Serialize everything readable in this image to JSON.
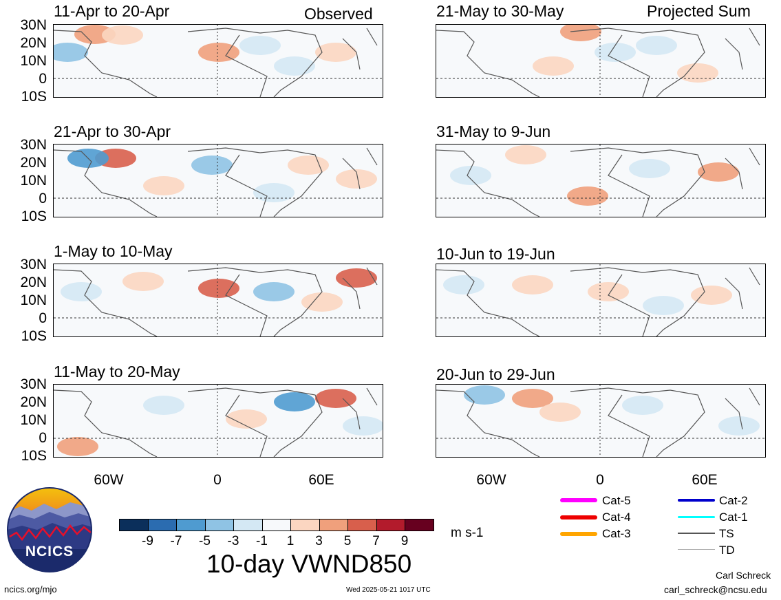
{
  "headers": {
    "left": "Observed",
    "right": "Projected Sum"
  },
  "panels_left": [
    {
      "title": "11-Apr to 20-Apr"
    },
    {
      "title": "21-Apr to 30-Apr"
    },
    {
      "title": "1-May to 10-May"
    },
    {
      "title": "11-May to 20-May"
    }
  ],
  "panels_right": [
    {
      "title": "21-May to 30-May"
    },
    {
      "title": "31-May to 9-Jun"
    },
    {
      "title": "10-Jun to 19-Jun"
    },
    {
      "title": "20-Jun to 29-Jun"
    }
  ],
  "lat_labels": [
    "30N",
    "20N",
    "10N",
    "0",
    "10S"
  ],
  "lon_labels": [
    "60W",
    "0",
    "60E"
  ],
  "colorbar": {
    "title": "10-day VWND850",
    "units": "m s-1",
    "tick_labels": [
      "-9",
      "-7",
      "-5",
      "-3",
      "-1",
      "1",
      "3",
      "5",
      "7",
      "9"
    ],
    "colors": [
      "#0b2f5b",
      "#2b6cb0",
      "#4f9bd0",
      "#8fc3e4",
      "#d4e8f4",
      "#f7f9fb",
      "#fbd6c1",
      "#f0a07c",
      "#d85f4c",
      "#b31b2c",
      "#67001f"
    ]
  },
  "storm_legend": {
    "items": [
      {
        "label": "Cat-5",
        "color": "#ff00ff"
      },
      {
        "label": "Cat-4",
        "color": "#ee0000"
      },
      {
        "label": "Cat-3",
        "color": "#ffa500"
      },
      {
        "label": "Cat-2",
        "color": "#0000cc"
      },
      {
        "label": "Cat-1",
        "color": "#00ffff"
      },
      {
        "label": "TS",
        "color": "#555555"
      },
      {
        "label": "TD",
        "color": "#aaaaaa"
      }
    ]
  },
  "logo": {
    "text": "NCICS"
  },
  "footer": {
    "url": "ncics.org/mjo",
    "timestamp": "Wed 2025-05-21 1017 UTC",
    "author": "Carl Schreck",
    "email": "carl_schreck@ncsu.edu"
  }
}
